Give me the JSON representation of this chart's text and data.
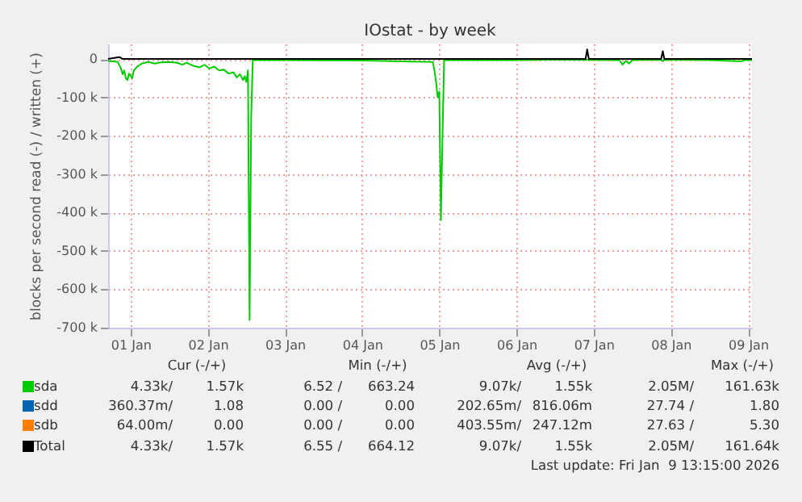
{
  "chart_data": {
    "type": "line",
    "title": "IOstat - by week",
    "ylabel": "blocks per second read (-) / written (+)",
    "ylim": [
      -700000,
      40000
    ],
    "yticks": [
      0,
      {
        "value": -100000,
        "label": "-100 k"
      },
      {
        "value": -200000,
        "label": "-200 k"
      },
      {
        "value": -300000,
        "label": "-300 k"
      },
      {
        "value": -400000,
        "label": "-400 k"
      },
      {
        "value": -500000,
        "label": "-500 k"
      },
      {
        "value": -600000,
        "label": "-600 k"
      },
      {
        "value": -700000,
        "label": "-700 k"
      }
    ],
    "xlim": [
      "2026-01-01T05:00",
      "2026-01-09T13:15"
    ],
    "xticks": [
      {
        "value": "2026-01-01T12:00",
        "label": "01 Jan"
      },
      {
        "value": "2026-01-02T12:00",
        "label": "02 Jan"
      },
      {
        "value": "2026-01-03T12:00",
        "label": "03 Jan"
      },
      {
        "value": "2026-01-04T12:00",
        "label": "04 Jan"
      },
      {
        "value": "2026-01-05T12:00",
        "label": "05 Jan"
      },
      {
        "value": "2026-01-06T12:00",
        "label": "06 Jan"
      },
      {
        "value": "2026-01-07T12:00",
        "label": "07 Jan"
      },
      {
        "value": "2026-01-08T12:00",
        "label": "08 Jan"
      },
      {
        "value": "2026-01-09T12:00",
        "label": "09 Jan"
      }
    ],
    "grid": true,
    "legend": "bottom",
    "series": [
      {
        "name": "sda",
        "color": "#00cc00",
        "x": [
          "2026-01-01T05:00",
          "2026-01-01T06:30",
          "2026-01-01T08:00",
          "2026-01-01T09:00",
          "2026-01-01T09:30",
          "2026-01-01T10:00",
          "2026-01-01T10:30",
          "2026-01-01T11:00",
          "2026-01-01T11:30",
          "2026-01-01T12:30",
          "2026-01-01T13:00",
          "2026-01-01T14:00",
          "2026-01-01T15:30",
          "2026-01-01T17:30",
          "2026-01-01T19:30",
          "2026-01-01T21:30",
          "2026-01-02T00:00",
          "2026-01-02T02:30",
          "2026-01-02T04:00",
          "2026-01-02T05:30",
          "2026-01-02T07:30",
          "2026-01-02T09:30",
          "2026-01-02T11:00",
          "2026-01-02T12:30",
          "2026-01-02T14:00",
          "2026-01-02T15:30",
          "2026-01-02T17:00",
          "2026-01-02T18:30",
          "2026-01-02T20:00",
          "2026-01-02T21:00",
          "2026-01-02T22:00",
          "2026-01-02T23:00",
          "2026-01-02T23:30",
          "2026-01-03T00:00",
          "2026-01-03T00:30",
          "2026-01-03T01:00",
          "2026-01-03T01:30",
          "2026-01-03T02:00",
          "2026-01-03T12:00",
          "2026-01-04T12:00",
          "2026-01-05T10:00",
          "2026-01-05T10:30",
          "2026-01-05T11:00",
          "2026-01-05T11:30",
          "2026-01-05T12:00",
          "2026-01-05T12:30",
          "2026-01-05T13:00",
          "2026-01-05T13:30",
          "2026-01-06T12:00",
          "2026-01-07T00:00",
          "2026-01-07T20:00",
          "2026-01-07T21:00",
          "2026-01-07T22:00",
          "2026-01-07T23:00",
          "2026-01-08T00:00",
          "2026-01-08T09:00",
          "2026-01-08T09:30",
          "2026-01-08T10:00",
          "2026-01-09T00:00",
          "2026-01-09T10:00",
          "2026-01-09T11:00",
          "2026-01-09T13:15"
        ],
        "values": [
          -5000,
          -6000,
          -8000,
          -25000,
          -40000,
          -30000,
          -50000,
          -55000,
          -38000,
          -50000,
          -30000,
          -20000,
          -12000,
          -8000,
          -12000,
          -9000,
          -8000,
          -10000,
          -15000,
          -10000,
          -18000,
          -22000,
          -15000,
          -25000,
          -20000,
          -30000,
          -28000,
          -38000,
          -35000,
          -48000,
          -40000,
          -55000,
          -45000,
          -60000,
          -30000,
          -680000,
          -150000,
          -3000,
          -3000,
          -4000,
          -8000,
          -30000,
          -60000,
          -100000,
          -85000,
          -420000,
          -200000,
          -3000,
          -3000,
          -2000,
          -3000,
          -15000,
          -5000,
          -12000,
          -3000,
          -2000,
          -6000,
          -2000,
          -3000,
          -6000,
          -3000,
          -3000
        ]
      },
      {
        "name": "sdd",
        "color": "#0066b3"
      },
      {
        "name": "sdb",
        "color": "#ff8000"
      },
      {
        "name": "Total",
        "color": "#000000",
        "x": [
          "2026-01-01T05:00",
          "2026-01-01T08:30",
          "2026-01-01T09:30",
          "2026-01-07T09:30",
          "2026-01-07T10:00",
          "2026-01-07T10:30",
          "2026-01-08T09:00",
          "2026-01-08T09:30",
          "2026-01-08T10:00",
          "2026-01-09T13:15"
        ],
        "values": [
          0,
          5000,
          0,
          0,
          25000,
          0,
          0,
          20000,
          0,
          0
        ]
      }
    ],
    "annotations": [
      "Cur (-/+)",
      "Min (-/+)",
      "Avg (-/+)",
      "Max (-/+)",
      "4.33k/",
      "1.57k",
      "6.52 /",
      "663.24",
      "9.07k/",
      "1.55k",
      "2.05M/",
      "161.63k",
      "360.37m/",
      "1.08",
      "0.00 /",
      "0.00",
      "202.65m/",
      "816.06m",
      "27.74 /",
      "1.80",
      "64.00m/",
      "0.00",
      "0.00 /",
      "0.00",
      "403.55m/",
      "247.12m",
      "27.63 /",
      "5.30",
      "4.33k/",
      "1.57k",
      "6.55 /",
      "664.12",
      "9.07k/",
      "1.55k",
      "2.05M/",
      "161.64k",
      "Last update: Fri Jan  9 13:15:00 2026"
    ]
  }
}
